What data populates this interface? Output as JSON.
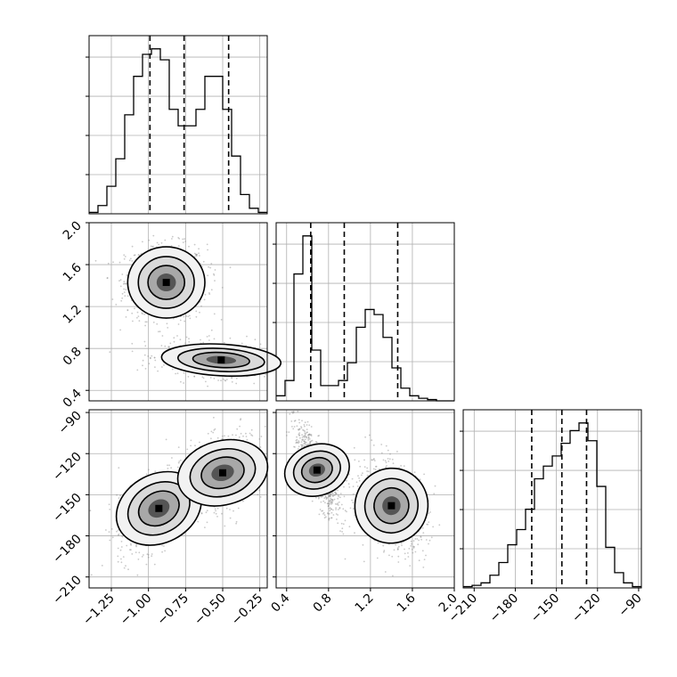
{
  "chart_data": {
    "type": "corner",
    "grid": true,
    "parameters": [
      {
        "key": "p0",
        "range": [
          -1.4,
          -0.2
        ],
        "ticks": [
          "-1.25",
          "-1.00",
          "-0.75",
          "-0.50",
          "-0.25"
        ],
        "tick_values": [
          -1.25,
          -1.0,
          -0.75,
          -0.5,
          -0.25
        ],
        "quantiles": [
          -0.99,
          -0.76,
          -0.46
        ]
      },
      {
        "key": "p1",
        "range": [
          0.3,
          2.0
        ],
        "ticks": [
          "0.4",
          "0.8",
          "1.2",
          "1.6",
          "2.0"
        ],
        "tick_values": [
          0.4,
          0.8,
          1.2,
          1.6,
          2.0
        ],
        "quantiles": [
          0.63,
          0.95,
          1.46
        ]
      },
      {
        "key": "p2",
        "range": [
          -218,
          -88
        ],
        "ticks": [
          "-210",
          "-180",
          "-150",
          "-120",
          "-90"
        ],
        "tick_values": [
          -210,
          -180,
          -150,
          -120,
          -90
        ],
        "quantiles": [
          -168,
          -146,
          -128
        ]
      }
    ],
    "histograms": [
      {
        "param": 0,
        "bin_start": -1.4,
        "bin_width": 0.06,
        "counts": [
          1,
          6,
          20,
          40,
          72,
          100,
          116,
          120,
          112,
          76,
          64,
          64,
          76,
          100,
          100,
          76,
          42,
          14,
          4,
          1
        ]
      },
      {
        "param": 1,
        "bin_start": 0.3,
        "bin_width": 0.085,
        "counts": [
          4,
          16,
          100,
          130,
          40,
          12,
          12,
          16,
          30,
          58,
          72,
          68,
          50,
          26,
          10,
          4,
          2,
          1,
          0,
          0
        ]
      },
      {
        "param": 2,
        "bin_start": -218,
        "bin_width": 6.5,
        "counts": [
          1,
          2,
          4,
          10,
          20,
          34,
          46,
          62,
          86,
          96,
          104,
          114,
          124,
          130,
          116,
          80,
          32,
          12,
          4,
          1
        ]
      }
    ],
    "pairs": [
      {
        "x": 0,
        "y": 1,
        "modes": [
          {
            "cx": -0.88,
            "cy": 1.43,
            "sx": 0.13,
            "sy": 0.17,
            "r": 0,
            "w": 0.55
          },
          {
            "cx": -0.51,
            "cy": 0.69,
            "sx": 0.19,
            "sy": 0.08,
            "r": -0.2,
            "w": 0.45
          }
        ]
      },
      {
        "x": 0,
        "y": 2,
        "modes": [
          {
            "cx": -0.93,
            "cy": -160,
            "sx": 0.13,
            "sy": 15,
            "r": 0.55,
            "w": 0.5
          },
          {
            "cx": -0.5,
            "cy": -134,
            "sx": 0.14,
            "sy": 13,
            "r": 0.35,
            "w": 0.5
          }
        ]
      },
      {
        "x": 1,
        "y": 2,
        "modes": [
          {
            "cx": 0.69,
            "cy": -132,
            "sx": 0.1,
            "sy": 16,
            "r": -0.8,
            "w": 0.45
          },
          {
            "cx": 1.4,
            "cy": -158,
            "sx": 0.16,
            "sy": 15,
            "r": -0.3,
            "w": 0.55
          }
        ]
      }
    ]
  }
}
